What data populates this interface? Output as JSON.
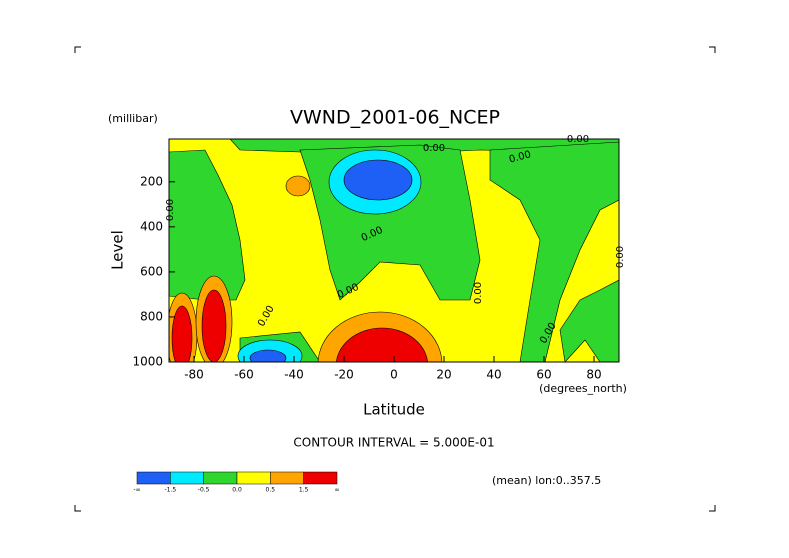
{
  "chart_data": {
    "type": "contour",
    "title": "VWND_2001-06_NCEP",
    "y_units": "(millibar)",
    "y_label": "Level",
    "x_label": "Latitude",
    "x_units": "(degrees_north)",
    "xlim": [
      -90,
      90
    ],
    "ylim": [
      1000,
      10
    ],
    "xticks": [
      -80,
      -60,
      -40,
      -20,
      0,
      20,
      40,
      60,
      80
    ],
    "yticks": [
      200,
      400,
      600,
      800,
      1000
    ],
    "contour_labels": [
      "0.00",
      "0.00",
      "0.00",
      "0.00",
      "0.00",
      "0.00",
      "0.00",
      "0.00",
      "0.00",
      "0.00"
    ],
    "note": "CONTOUR INTERVAL = 5.000E-01",
    "averaging": "(mean) lon:0..357.5",
    "colorbar": {
      "colors": [
        "#1e5ff5",
        "#00eaff",
        "#2ed62e",
        "#ffff00",
        "#ffa500",
        "#ee0000"
      ],
      "labels": [
        "-∞",
        "-1.5",
        "-0.5",
        "0.0",
        "0.5",
        "1.5",
        "∞"
      ]
    },
    "grid": false
  }
}
